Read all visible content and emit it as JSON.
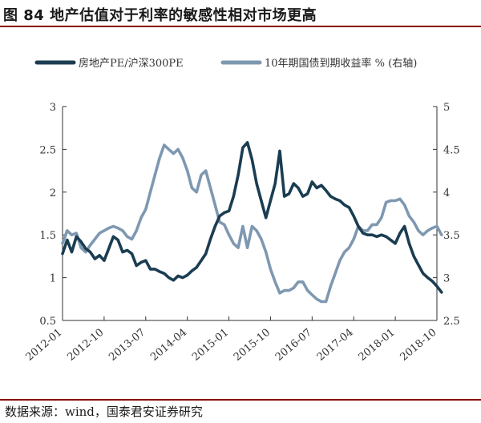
{
  "title": "图 84  地产估值对于利率的敏感性相对市场更高",
  "source": "数据来源：wind，国泰君安证券研究",
  "colors": {
    "rule": "#8a0000",
    "series1": "#1b3d52",
    "series2": "#7f98b1",
    "axis": "#333333"
  },
  "chart_data": {
    "type": "line",
    "legend_position": "top",
    "grid": false,
    "x_ticks": [
      "2012-01",
      "2012-10",
      "2013-07",
      "2014-04",
      "2015-01",
      "2015-10",
      "2016-07",
      "2017-04",
      "2018-01",
      "2018-10"
    ],
    "x_range": [
      "2012-01",
      "2018-10"
    ],
    "y_left": {
      "min": 0.5,
      "max": 3,
      "ticks": [
        "0.5",
        "1",
        "1.5",
        "2",
        "2.5",
        "3"
      ]
    },
    "y_right": {
      "min": 2.5,
      "max": 5,
      "ticks": [
        "2.5",
        "3",
        "3.5",
        "4",
        "4.5",
        "5"
      ]
    },
    "series": [
      {
        "name": "房地产PE/沪深300PE",
        "axis": "left",
        "points": [
          [
            "2012-01",
            1.28
          ],
          [
            "2012-02",
            1.44
          ],
          [
            "2012-03",
            1.3
          ],
          [
            "2012-04",
            1.48
          ],
          [
            "2012-05",
            1.42
          ],
          [
            "2012-06",
            1.34
          ],
          [
            "2012-07",
            1.3
          ],
          [
            "2012-08",
            1.22
          ],
          [
            "2012-09",
            1.26
          ],
          [
            "2012-10",
            1.2
          ],
          [
            "2012-11",
            1.34
          ],
          [
            "2012-12",
            1.48
          ],
          [
            "2013-01",
            1.44
          ],
          [
            "2013-02",
            1.3
          ],
          [
            "2013-03",
            1.32
          ],
          [
            "2013-04",
            1.28
          ],
          [
            "2013-05",
            1.14
          ],
          [
            "2013-06",
            1.18
          ],
          [
            "2013-07",
            1.2
          ],
          [
            "2013-08",
            1.1
          ],
          [
            "2013-09",
            1.1
          ],
          [
            "2013-10",
            1.07
          ],
          [
            "2013-11",
            1.05
          ],
          [
            "2013-12",
            1.0
          ],
          [
            "2014-01",
            0.97
          ],
          [
            "2014-02",
            1.02
          ],
          [
            "2014-03",
            1.0
          ],
          [
            "2014-04",
            1.03
          ],
          [
            "2014-05",
            1.08
          ],
          [
            "2014-06",
            1.12
          ],
          [
            "2014-07",
            1.2
          ],
          [
            "2014-08",
            1.28
          ],
          [
            "2014-09",
            1.45
          ],
          [
            "2014-10",
            1.6
          ],
          [
            "2014-11",
            1.72
          ],
          [
            "2014-12",
            1.76
          ],
          [
            "2015-01",
            1.78
          ],
          [
            "2015-02",
            1.95
          ],
          [
            "2015-03",
            2.2
          ],
          [
            "2015-04",
            2.52
          ],
          [
            "2015-05",
            2.58
          ],
          [
            "2015-06",
            2.38
          ],
          [
            "2015-07",
            2.1
          ],
          [
            "2015-08",
            1.9
          ],
          [
            "2015-09",
            1.7
          ],
          [
            "2015-10",
            1.9
          ],
          [
            "2015-11",
            2.1
          ],
          [
            "2015-12",
            2.48
          ],
          [
            "2016-01",
            1.95
          ],
          [
            "2016-02",
            1.98
          ],
          [
            "2016-03",
            2.1
          ],
          [
            "2016-04",
            2.05
          ],
          [
            "2016-05",
            1.95
          ],
          [
            "2016-06",
            1.98
          ],
          [
            "2016-07",
            2.12
          ],
          [
            "2016-08",
            2.05
          ],
          [
            "2016-09",
            2.08
          ],
          [
            "2016-10",
            2.02
          ],
          [
            "2016-11",
            1.95
          ],
          [
            "2016-12",
            1.92
          ],
          [
            "2017-01",
            1.9
          ],
          [
            "2017-02",
            1.85
          ],
          [
            "2017-03",
            1.82
          ],
          [
            "2017-04",
            1.72
          ],
          [
            "2017-05",
            1.6
          ],
          [
            "2017-06",
            1.52
          ],
          [
            "2017-07",
            1.5
          ],
          [
            "2017-08",
            1.5
          ],
          [
            "2017-09",
            1.48
          ],
          [
            "2017-10",
            1.5
          ],
          [
            "2017-11",
            1.48
          ],
          [
            "2017-12",
            1.44
          ],
          [
            "2018-01",
            1.4
          ],
          [
            "2018-02",
            1.52
          ],
          [
            "2018-03",
            1.6
          ],
          [
            "2018-04",
            1.4
          ],
          [
            "2018-05",
            1.25
          ],
          [
            "2018-06",
            1.15
          ],
          [
            "2018-07",
            1.05
          ],
          [
            "2018-08",
            1.0
          ],
          [
            "2018-09",
            0.96
          ],
          [
            "2018-10",
            0.9
          ],
          [
            "2018-11",
            0.83
          ]
        ]
      },
      {
        "name": "10年期国债到期收益率 % (右轴)",
        "axis": "right",
        "points": [
          [
            "2012-01",
            3.4
          ],
          [
            "2012-02",
            3.55
          ],
          [
            "2012-03",
            3.5
          ],
          [
            "2012-04",
            3.52
          ],
          [
            "2012-05",
            3.35
          ],
          [
            "2012-06",
            3.3
          ],
          [
            "2012-07",
            3.38
          ],
          [
            "2012-08",
            3.45
          ],
          [
            "2012-09",
            3.52
          ],
          [
            "2012-10",
            3.55
          ],
          [
            "2012-11",
            3.58
          ],
          [
            "2012-12",
            3.6
          ],
          [
            "2013-01",
            3.58
          ],
          [
            "2013-02",
            3.55
          ],
          [
            "2013-03",
            3.48
          ],
          [
            "2013-04",
            3.45
          ],
          [
            "2013-05",
            3.55
          ],
          [
            "2013-06",
            3.7
          ],
          [
            "2013-07",
            3.8
          ],
          [
            "2013-08",
            4.0
          ],
          [
            "2013-09",
            4.2
          ],
          [
            "2013-10",
            4.4
          ],
          [
            "2013-11",
            4.55
          ],
          [
            "2013-12",
            4.5
          ],
          [
            "2014-01",
            4.45
          ],
          [
            "2014-02",
            4.5
          ],
          [
            "2014-03",
            4.4
          ],
          [
            "2014-04",
            4.25
          ],
          [
            "2014-05",
            4.05
          ],
          [
            "2014-06",
            4.0
          ],
          [
            "2014-07",
            4.2
          ],
          [
            "2014-08",
            4.25
          ],
          [
            "2014-09",
            4.05
          ],
          [
            "2014-10",
            3.85
          ],
          [
            "2014-11",
            3.65
          ],
          [
            "2014-12",
            3.62
          ],
          [
            "2015-01",
            3.5
          ],
          [
            "2015-02",
            3.4
          ],
          [
            "2015-03",
            3.35
          ],
          [
            "2015-04",
            3.6
          ],
          [
            "2015-05",
            3.35
          ],
          [
            "2015-06",
            3.6
          ],
          [
            "2015-07",
            3.55
          ],
          [
            "2015-08",
            3.45
          ],
          [
            "2015-09",
            3.3
          ],
          [
            "2015-10",
            3.1
          ],
          [
            "2015-11",
            2.95
          ],
          [
            "2015-12",
            2.82
          ],
          [
            "2016-01",
            2.85
          ],
          [
            "2016-02",
            2.85
          ],
          [
            "2016-03",
            2.88
          ],
          [
            "2016-04",
            2.95
          ],
          [
            "2016-05",
            2.95
          ],
          [
            "2016-06",
            2.85
          ],
          [
            "2016-07",
            2.8
          ],
          [
            "2016-08",
            2.75
          ],
          [
            "2016-09",
            2.72
          ],
          [
            "2016-10",
            2.72
          ],
          [
            "2016-11",
            2.9
          ],
          [
            "2016-12",
            3.05
          ],
          [
            "2017-01",
            3.2
          ],
          [
            "2017-02",
            3.3
          ],
          [
            "2017-03",
            3.35
          ],
          [
            "2017-04",
            3.45
          ],
          [
            "2017-05",
            3.6
          ],
          [
            "2017-06",
            3.55
          ],
          [
            "2017-07",
            3.55
          ],
          [
            "2017-08",
            3.62
          ],
          [
            "2017-09",
            3.62
          ],
          [
            "2017-10",
            3.7
          ],
          [
            "2017-11",
            3.88
          ],
          [
            "2017-12",
            3.9
          ],
          [
            "2018-01",
            3.9
          ],
          [
            "2018-02",
            3.92
          ],
          [
            "2018-03",
            3.85
          ],
          [
            "2018-04",
            3.72
          ],
          [
            "2018-05",
            3.65
          ],
          [
            "2018-06",
            3.55
          ],
          [
            "2018-07",
            3.5
          ],
          [
            "2018-08",
            3.55
          ],
          [
            "2018-09",
            3.58
          ],
          [
            "2018-10",
            3.6
          ],
          [
            "2018-11",
            3.5
          ]
        ]
      }
    ]
  }
}
